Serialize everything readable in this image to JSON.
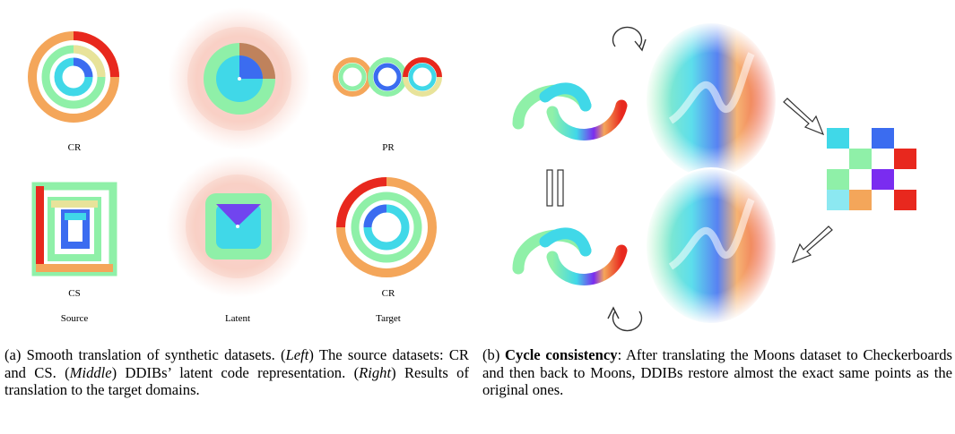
{
  "panel_a": {
    "row_labels": [
      "CR",
      "PR",
      "CS",
      "CR"
    ],
    "column_labels": [
      "Source",
      "Latent",
      "Target"
    ],
    "caption": {
      "prefix": "(a) Smooth translation of synthetic datasets. (",
      "left": "Left",
      "part2": ") The source datasets: CR and CS. (",
      "middle": "Middle",
      "part3": ") DDIBs’ latent code representation. (",
      "right": "Right",
      "part4": ") Results of translation to the target domains."
    }
  },
  "panel_b": {
    "caption": {
      "prefix": "(b) ",
      "bold": "Cycle consistency",
      "rest": ": After translating the Moons dataset to Checkerboards and then back to Moons, DDIBs restore almost the exact same points as the original ones."
    }
  },
  "colors": {
    "red": "#e8281e",
    "orange": "#f4a65a",
    "yellow": "#e8e39a",
    "green": "#8ff0a8",
    "cyan": "#40d8e8",
    "blue": "#3b6cf0",
    "violet": "#7a2cf0"
  }
}
